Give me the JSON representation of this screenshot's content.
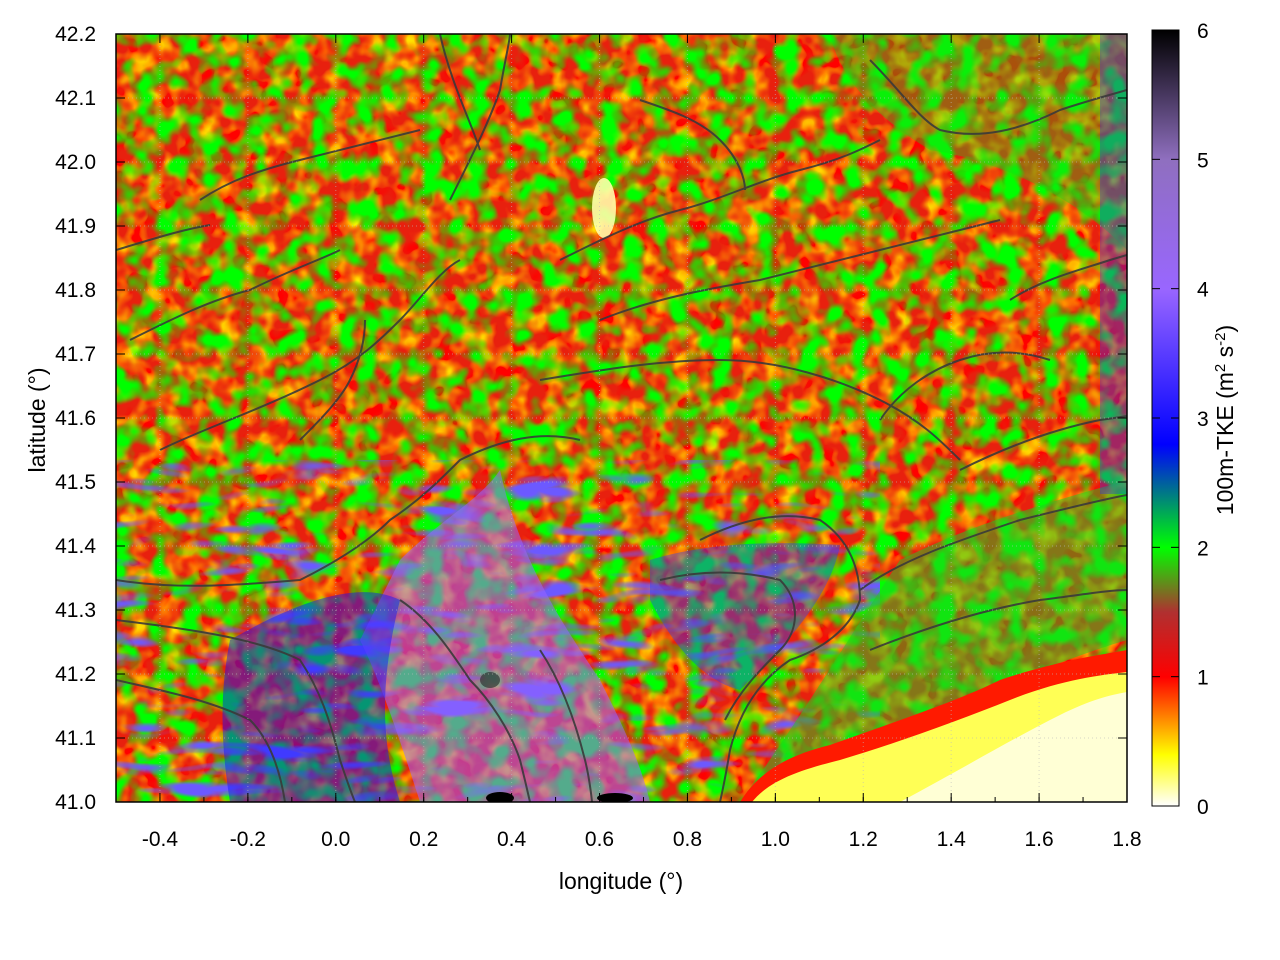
{
  "chart_data": {
    "type": "heatmap",
    "title": "",
    "xlabel": "longitude (°)",
    "ylabel": "latitude (°)",
    "xlim": [
      -0.5,
      1.8
    ],
    "ylim": [
      41.0,
      42.2
    ],
    "x_ticks": [
      "-0.4",
      "-0.2",
      "0.0",
      "0.2",
      "0.4",
      "0.6",
      "0.8",
      "1.0",
      "1.2",
      "1.4",
      "1.6",
      "1.8"
    ],
    "x_tick_values": [
      -0.4,
      -0.2,
      0.0,
      0.2,
      0.4,
      0.6,
      0.8,
      1.0,
      1.2,
      1.4,
      1.6,
      1.8
    ],
    "y_ticks": [
      "41.0",
      "41.1",
      "41.2",
      "41.3",
      "41.4",
      "41.5",
      "41.6",
      "41.7",
      "41.8",
      "41.9",
      "42.0",
      "42.1",
      "42.2"
    ],
    "y_tick_values": [
      41.0,
      41.1,
      41.2,
      41.3,
      41.4,
      41.5,
      41.6,
      41.7,
      41.8,
      41.9,
      42.0,
      42.1,
      42.2
    ],
    "colorbar": {
      "label_main": "100m-TKE (m",
      "label_sup1": "2",
      "label_mid": " s",
      "label_sup2": "-2",
      "label_end": ")",
      "range": [
        0,
        6
      ],
      "ticks": [
        "0",
        "1",
        "2",
        "3",
        "4",
        "5",
        "6"
      ],
      "tick_values": [
        0,
        1,
        2,
        3,
        4,
        5,
        6
      ],
      "colormap": [
        [
          0.0,
          "#ffffff"
        ],
        [
          0.4,
          "#ffff00"
        ],
        [
          1.0,
          "#ff0000"
        ],
        [
          1.5,
          "#b03030"
        ],
        [
          2.0,
          "#00ff00"
        ],
        [
          2.8,
          "#0000ff"
        ],
        [
          4.0,
          "#9966ff"
        ],
        [
          5.0,
          "#8f6fbf"
        ],
        [
          6.0,
          "#000000"
        ]
      ]
    },
    "field_description_values": {
      "sea_region_tke": 0.1,
      "land_north_tke": 1.1,
      "southern_valleys_tke": 3.0,
      "peak_tke": 6.0
    },
    "overlay": "terrain contours",
    "grid": true
  }
}
